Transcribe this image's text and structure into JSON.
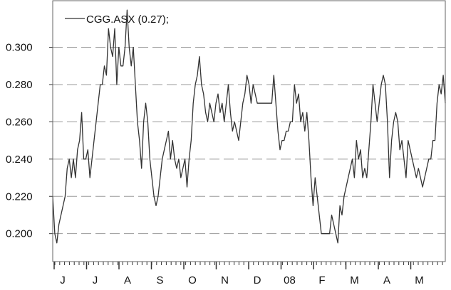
{
  "chart_data": {
    "type": "line",
    "title": "",
    "legend": {
      "label": "CGG.ASX (0.27);",
      "placement": "top-left"
    },
    "xlabel": "",
    "ylabel": "",
    "ylim": [
      0.185,
      0.325
    ],
    "grid": {
      "horizontal": true,
      "style": "dashed"
    },
    "yticks": [
      {
        "value": 0.2,
        "label": "0.200"
      },
      {
        "value": 0.22,
        "label": "0.220"
      },
      {
        "value": 0.24,
        "label": "0.240"
      },
      {
        "value": 0.26,
        "label": "0.260"
      },
      {
        "value": 0.28,
        "label": "0.280"
      },
      {
        "value": 0.3,
        "label": "0.300"
      }
    ],
    "xtick_labels": [
      "J",
      "J",
      "A",
      "S",
      "O",
      "N",
      "D",
      "08",
      "F",
      "M",
      "A",
      "M"
    ],
    "series": [
      {
        "name": "CGG.ASX (0.27);",
        "color": "#333333",
        "values": [
          0.22,
          0.2,
          0.195,
          0.205,
          0.21,
          0.215,
          0.22,
          0.235,
          0.24,
          0.23,
          0.24,
          0.23,
          0.245,
          0.25,
          0.265,
          0.24,
          0.24,
          0.245,
          0.23,
          0.24,
          0.25,
          0.26,
          0.27,
          0.28,
          0.28,
          0.29,
          0.285,
          0.31,
          0.3,
          0.295,
          0.31,
          0.28,
          0.3,
          0.29,
          0.29,
          0.3,
          0.32,
          0.3,
          0.29,
          0.3,
          0.28,
          0.26,
          0.25,
          0.235,
          0.26,
          0.27,
          0.26,
          0.24,
          0.23,
          0.22,
          0.215,
          0.22,
          0.23,
          0.24,
          0.245,
          0.25,
          0.255,
          0.24,
          0.25,
          0.24,
          0.235,
          0.24,
          0.23,
          0.235,
          0.24,
          0.225,
          0.24,
          0.25,
          0.27,
          0.28,
          0.285,
          0.295,
          0.28,
          0.275,
          0.265,
          0.26,
          0.27,
          0.265,
          0.26,
          0.27,
          0.275,
          0.265,
          0.27,
          0.26,
          0.27,
          0.28,
          0.265,
          0.255,
          0.26,
          0.255,
          0.25,
          0.26,
          0.27,
          0.275,
          0.285,
          0.28,
          0.27,
          0.28,
          0.275,
          0.27,
          0.27,
          0.27,
          0.27,
          0.27,
          0.27,
          0.27,
          0.27,
          0.285,
          0.27,
          0.255,
          0.245,
          0.25,
          0.25,
          0.255,
          0.255,
          0.26,
          0.26,
          0.28,
          0.27,
          0.275,
          0.26,
          0.265,
          0.255,
          0.265,
          0.25,
          0.23,
          0.215,
          0.23,
          0.22,
          0.21,
          0.2,
          0.2,
          0.2,
          0.2,
          0.2,
          0.21,
          0.205,
          0.2,
          0.195,
          0.215,
          0.21,
          0.22,
          0.225,
          0.23,
          0.235,
          0.24,
          0.23,
          0.25,
          0.24,
          0.245,
          0.23,
          0.235,
          0.23,
          0.245,
          0.26,
          0.28,
          0.27,
          0.26,
          0.27,
          0.28,
          0.285,
          0.28,
          0.26,
          0.23,
          0.25,
          0.26,
          0.265,
          0.26,
          0.245,
          0.25,
          0.24,
          0.23,
          0.25,
          0.245,
          0.24,
          0.235,
          0.23,
          0.235,
          0.23,
          0.225,
          0.23,
          0.235,
          0.24,
          0.24,
          0.25,
          0.25,
          0.27,
          0.28,
          0.275,
          0.285,
          0.27
        ]
      }
    ]
  }
}
